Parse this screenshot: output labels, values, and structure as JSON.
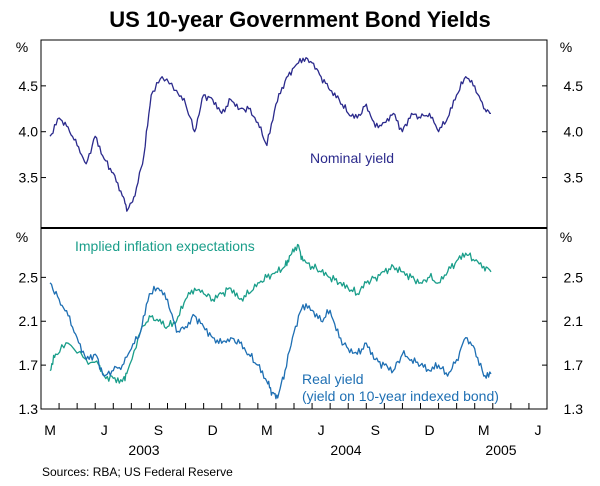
{
  "chart_data": {
    "type": "line",
    "title": "US 10-year Government Bond Yields",
    "source": "Sources: RBA; US Federal Reserve",
    "x_axis": {
      "month_labels": [
        "M",
        "J",
        "S",
        "D",
        "M",
        "J",
        "S",
        "D",
        "M",
        "J"
      ],
      "year_labels": [
        "2003",
        "2004",
        "2005"
      ],
      "range": [
        "2003-02",
        "2005-05"
      ]
    },
    "panels": [
      {
        "name": "top",
        "unit_label": "%",
        "ylim": [
          2.95,
          5.0
        ],
        "ticks": [
          "4.5",
          "4.0",
          "3.5"
        ],
        "tick_values": [
          4.5,
          4.0,
          3.5
        ],
        "series": [
          {
            "name": "Nominal yield",
            "label": "Nominal yield",
            "color": "#2b2a8c",
            "x": [
              0,
              0.5,
              1.0,
              1.5,
              2.0,
              2.5,
              3.0,
              3.5,
              4.0,
              4.3,
              4.7,
              5.2,
              5.6,
              6.2,
              7.0,
              7.5,
              8.0,
              8.5,
              9.0,
              9.5,
              10.0,
              10.5,
              11.0,
              11.5,
              12.0,
              12.5,
              13.0,
              13.5,
              14.0,
              14.5,
              15.0,
              15.5,
              16.0,
              16.5,
              17.0,
              17.5,
              18.0,
              18.5,
              19.0,
              19.5,
              20.0,
              20.5,
              21.0,
              21.5,
              22.0,
              22.5,
              23.0,
              23.5,
              24.0,
              24.4
            ],
            "values": [
              3.95,
              4.15,
              4.05,
              3.85,
              3.65,
              3.95,
              3.7,
              3.55,
              3.3,
              3.15,
              3.3,
              3.75,
              4.4,
              4.6,
              4.45,
              4.3,
              4.0,
              4.4,
              4.35,
              4.2,
              4.35,
              4.25,
              4.25,
              4.1,
              3.85,
              4.3,
              4.55,
              4.7,
              4.8,
              4.75,
              4.6,
              4.45,
              4.35,
              4.2,
              4.15,
              4.3,
              4.05,
              4.1,
              4.2,
              4.0,
              4.2,
              4.15,
              4.2,
              4.0,
              4.15,
              4.4,
              4.6,
              4.5,
              4.25,
              4.2
            ]
          }
        ]
      },
      {
        "name": "bottom",
        "unit_label": "%",
        "ylim": [
          1.3,
          2.95
        ],
        "ticks": [
          "2.5",
          "2.1",
          "1.7",
          "1.3"
        ],
        "tick_values": [
          2.5,
          2.1,
          1.7,
          1.3
        ],
        "series": [
          {
            "name": "Implied inflation expectations",
            "label": "Implied inflation expectations",
            "color": "#1a9e8a",
            "x": [
              0,
              0.3,
              1.0,
              2.0,
              2.7,
              3.0,
              3.5,
              4.0,
              4.3,
              5.0,
              5.5,
              6.0,
              6.5,
              7.0,
              7.5,
              8.0,
              8.5,
              9.0,
              9.5,
              10.0,
              10.5,
              11.0,
              11.5,
              12.0,
              12.5,
              13.0,
              13.3,
              13.7,
              14.0,
              14.5,
              15.0,
              15.5,
              16.0,
              16.5,
              17.0,
              17.5,
              18.0,
              18.5,
              19.0,
              19.5,
              20.0,
              20.5,
              21.0,
              21.5,
              22.0,
              22.5,
              23.0,
              23.5,
              24.0,
              24.4
            ],
            "values": [
              1.65,
              1.8,
              1.9,
              1.75,
              1.7,
              1.6,
              1.58,
              1.55,
              1.65,
              2.0,
              2.15,
              2.1,
              2.05,
              2.1,
              2.3,
              2.4,
              2.35,
              2.3,
              2.35,
              2.4,
              2.3,
              2.35,
              2.45,
              2.5,
              2.55,
              2.6,
              2.7,
              2.8,
              2.65,
              2.6,
              2.55,
              2.5,
              2.45,
              2.4,
              2.35,
              2.45,
              2.5,
              2.55,
              2.6,
              2.55,
              2.5,
              2.45,
              2.5,
              2.45,
              2.55,
              2.65,
              2.72,
              2.65,
              2.6,
              2.55
            ]
          },
          {
            "name": "Real yield",
            "label": "Real yield",
            "sublabel": "(yield on 10-year indexed bond)",
            "color": "#1e6fb3",
            "x": [
              0,
              0.5,
              1.0,
              1.5,
              2.0,
              2.5,
              3.0,
              3.5,
              4.0,
              4.5,
              5.0,
              5.5,
              6.0,
              6.5,
              7.0,
              7.5,
              8.0,
              8.5,
              9.0,
              9.5,
              10.0,
              10.5,
              11.0,
              11.5,
              12.0,
              12.3,
              12.6,
              13.0,
              13.5,
              14.0,
              14.5,
              15.0,
              15.5,
              16.0,
              16.5,
              17.0,
              17.5,
              18.0,
              18.5,
              19.0,
              19.5,
              20.0,
              20.5,
              21.0,
              21.5,
              22.0,
              22.5,
              23.0,
              23.5,
              24.0,
              24.4
            ],
            "values": [
              2.45,
              2.3,
              2.15,
              1.95,
              1.75,
              1.8,
              1.6,
              1.65,
              1.7,
              1.85,
              2.0,
              2.35,
              2.4,
              2.3,
              2.0,
              2.05,
              2.15,
              2.05,
              1.95,
              1.9,
              1.95,
              1.9,
              1.8,
              1.7,
              1.55,
              1.45,
              1.4,
              1.65,
              2.0,
              2.25,
              2.2,
              2.1,
              2.2,
              1.95,
              1.85,
              1.8,
              1.9,
              1.75,
              1.7,
              1.65,
              1.8,
              1.75,
              1.7,
              1.65,
              1.7,
              1.6,
              1.75,
              1.95,
              1.85,
              1.6,
              1.62
            ]
          }
        ]
      }
    ]
  }
}
